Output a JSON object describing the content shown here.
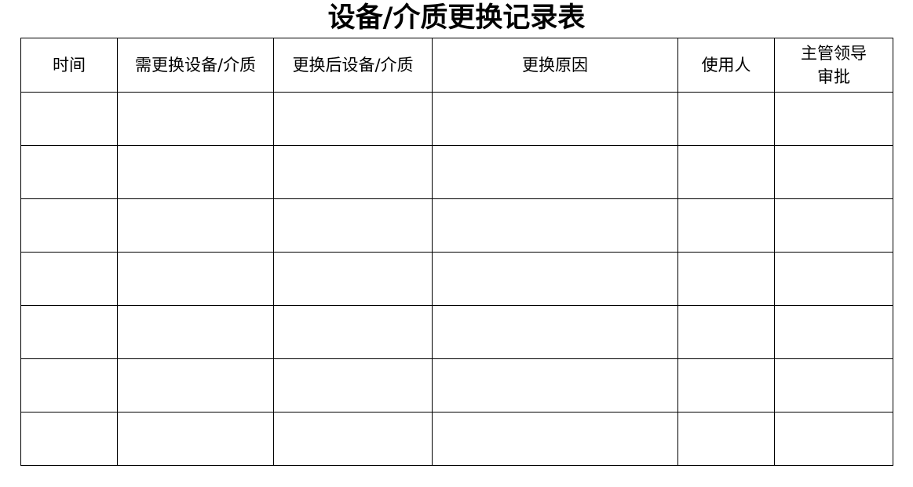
{
  "document": {
    "title": "设备/介质更换记录表",
    "columns": [
      "时间",
      "需更换设备/介质",
      "更换后设备/介质",
      "更换原因",
      "使用人",
      "主管领导\n审批"
    ],
    "rows": [
      [
        "",
        "",
        "",
        "",
        "",
        ""
      ],
      [
        "",
        "",
        "",
        "",
        "",
        ""
      ],
      [
        "",
        "",
        "",
        "",
        "",
        ""
      ],
      [
        "",
        "",
        "",
        "",
        "",
        ""
      ],
      [
        "",
        "",
        "",
        "",
        "",
        ""
      ],
      [
        "",
        "",
        "",
        "",
        "",
        ""
      ],
      [
        "",
        "",
        "",
        "",
        "",
        ""
      ]
    ]
  }
}
